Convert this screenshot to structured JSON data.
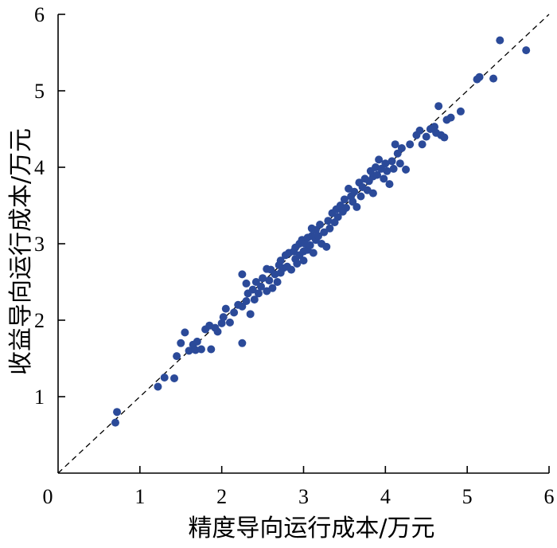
{
  "chart_data": {
    "type": "scatter",
    "xlabel": "精度导向运行成本/万元",
    "ylabel": "收益导向运行成本/万元",
    "xlim": [
      0,
      6
    ],
    "ylim": [
      0,
      6
    ],
    "x_ticks": [
      "0",
      "1",
      "2",
      "3",
      "4",
      "5",
      "6"
    ],
    "y_ticks": [
      "1",
      "2",
      "3",
      "4",
      "5",
      "6"
    ],
    "reference_line": {
      "style": "dashed",
      "from": [
        0,
        0
      ],
      "to": [
        6,
        6
      ]
    },
    "grid": false,
    "legend": "none",
    "point_color": "#2b4a99",
    "points": [
      [
        0.7,
        0.66
      ],
      [
        0.72,
        0.8
      ],
      [
        1.22,
        1.13
      ],
      [
        1.3,
        1.25
      ],
      [
        1.42,
        1.24
      ],
      [
        1.45,
        1.53
      ],
      [
        1.5,
        1.7
      ],
      [
        1.55,
        1.84
      ],
      [
        1.6,
        1.6
      ],
      [
        1.65,
        1.68
      ],
      [
        1.68,
        1.61
      ],
      [
        1.7,
        1.72
      ],
      [
        1.75,
        1.62
      ],
      [
        1.8,
        1.88
      ],
      [
        1.85,
        1.93
      ],
      [
        1.87,
        1.62
      ],
      [
        1.92,
        1.9
      ],
      [
        1.95,
        1.85
      ],
      [
        2.0,
        1.96
      ],
      [
        2.02,
        2.04
      ],
      [
        2.05,
        2.15
      ],
      [
        2.1,
        1.97
      ],
      [
        2.15,
        2.1
      ],
      [
        2.2,
        2.2
      ],
      [
        2.25,
        2.18
      ],
      [
        2.25,
        1.7
      ],
      [
        2.3,
        2.25
      ],
      [
        2.32,
        2.35
      ],
      [
        2.35,
        2.08
      ],
      [
        2.38,
        2.4
      ],
      [
        2.4,
        2.27
      ],
      [
        2.42,
        2.5
      ],
      [
        2.45,
        2.35
      ],
      [
        2.48,
        2.44
      ],
      [
        2.5,
        2.55
      ],
      [
        2.25,
        2.6
      ],
      [
        2.3,
        2.48
      ],
      [
        2.55,
        2.38
      ],
      [
        2.55,
        2.67
      ],
      [
        2.58,
        2.52
      ],
      [
        2.6,
        2.66
      ],
      [
        2.62,
        2.42
      ],
      [
        2.65,
        2.6
      ],
      [
        2.68,
        2.5
      ],
      [
        2.7,
        2.72
      ],
      [
        2.72,
        2.62
      ],
      [
        2.72,
        2.78
      ],
      [
        2.75,
        2.68
      ],
      [
        2.78,
        2.85
      ],
      [
        2.8,
        2.7
      ],
      [
        2.82,
        2.88
      ],
      [
        2.85,
        2.66
      ],
      [
        2.88,
        2.9
      ],
      [
        2.9,
        2.8
      ],
      [
        2.9,
        2.95
      ],
      [
        2.92,
        2.74
      ],
      [
        2.95,
        3.0
      ],
      [
        2.95,
        2.85
      ],
      [
        2.98,
        3.05
      ],
      [
        3.0,
        2.9
      ],
      [
        3.0,
        2.78
      ],
      [
        3.02,
        3.0
      ],
      [
        3.05,
        3.08
      ],
      [
        3.05,
        2.92
      ],
      [
        3.08,
        2.98
      ],
      [
        3.1,
        3.1
      ],
      [
        3.1,
        3.2
      ],
      [
        3.12,
        2.88
      ],
      [
        3.15,
        3.05
      ],
      [
        3.15,
        3.18
      ],
      [
        3.18,
        3.1
      ],
      [
        3.2,
        3.25
      ],
      [
        3.22,
        3.0
      ],
      [
        3.25,
        3.15
      ],
      [
        3.28,
        2.96
      ],
      [
        3.3,
        3.3
      ],
      [
        3.32,
        3.2
      ],
      [
        3.35,
        3.4
      ],
      [
        3.38,
        3.28
      ],
      [
        3.4,
        3.45
      ],
      [
        3.42,
        3.35
      ],
      [
        3.45,
        3.5
      ],
      [
        3.48,
        3.42
      ],
      [
        3.5,
        3.58
      ],
      [
        3.52,
        3.47
      ],
      [
        3.55,
        3.72
      ],
      [
        3.58,
        3.62
      ],
      [
        3.6,
        3.55
      ],
      [
        3.62,
        3.68
      ],
      [
        3.65,
        3.48
      ],
      [
        3.68,
        3.8
      ],
      [
        3.7,
        3.62
      ],
      [
        3.72,
        3.74
      ],
      [
        3.75,
        3.85
      ],
      [
        3.78,
        3.7
      ],
      [
        3.8,
        3.82
      ],
      [
        3.82,
        3.95
      ],
      [
        3.85,
        3.88
      ],
      [
        3.85,
        3.66
      ],
      [
        3.88,
        4.0
      ],
      [
        3.9,
        3.9
      ],
      [
        3.92,
        4.1
      ],
      [
        3.95,
        3.98
      ],
      [
        3.98,
        3.85
      ],
      [
        4.0,
        4.05
      ],
      [
        4.02,
        3.95
      ],
      [
        4.05,
        3.78
      ],
      [
        4.08,
        4.08
      ],
      [
        4.1,
        3.98
      ],
      [
        4.12,
        4.3
      ],
      [
        4.15,
        4.18
      ],
      [
        4.18,
        4.05
      ],
      [
        4.2,
        4.25
      ],
      [
        4.25,
        3.97
      ],
      [
        4.3,
        4.3
      ],
      [
        4.38,
        4.42
      ],
      [
        4.42,
        4.48
      ],
      [
        4.45,
        4.3
      ],
      [
        4.5,
        4.4
      ],
      [
        4.55,
        4.5
      ],
      [
        4.6,
        4.53
      ],
      [
        4.62,
        4.45
      ],
      [
        4.65,
        4.8
      ],
      [
        4.68,
        4.42
      ],
      [
        4.72,
        4.39
      ],
      [
        4.75,
        4.62
      ],
      [
        4.8,
        4.65
      ],
      [
        4.92,
        4.73
      ],
      [
        5.12,
        5.15
      ],
      [
        5.15,
        5.18
      ],
      [
        5.32,
        5.16
      ],
      [
        5.4,
        5.66
      ],
      [
        5.72,
        5.53
      ]
    ]
  }
}
